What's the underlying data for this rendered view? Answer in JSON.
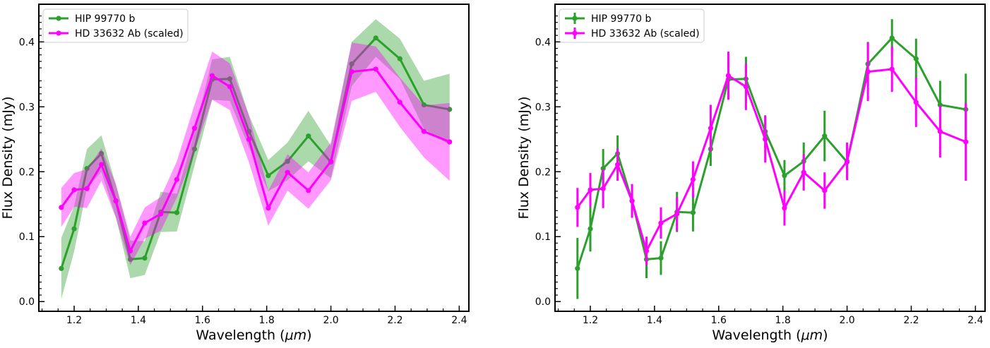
{
  "chart_data": [
    {
      "type": "line",
      "style": "shaded-band",
      "xlabel": "Wavelength (",
      "xlabel_unit": "μm",
      "xlabel_close": ")",
      "ylabel": "Flux Density (mJy)",
      "xlim": [
        1.09,
        2.43
      ],
      "ylim": [
        -0.015,
        0.458
      ],
      "xticks": [
        1.2,
        1.4,
        1.6,
        1.8,
        2.0,
        2.2,
        2.4
      ],
      "xtick_labels": [
        "1.2",
        "1.4",
        "1.6",
        "1.8",
        "2.0",
        "2.2",
        "2.4"
      ],
      "yticks": [
        0.0,
        0.1,
        0.2,
        0.3,
        0.4
      ],
      "ytick_labels": [
        "0.0",
        "0.1",
        "0.2",
        "0.3",
        "0.4"
      ],
      "legend_position": "top-left",
      "grid": false,
      "series": [
        {
          "name": "HIP 99770 b",
          "color": "#2ca02c",
          "x": [
            1.16,
            1.2,
            1.24,
            1.285,
            1.33,
            1.375,
            1.42,
            1.47,
            1.52,
            1.575,
            1.63,
            1.685,
            1.745,
            1.805,
            1.865,
            1.93,
            2.0,
            2.065,
            2.14,
            2.215,
            2.29,
            2.37
          ],
          "y": [
            0.051,
            0.112,
            0.205,
            0.228,
            0.155,
            0.065,
            0.067,
            0.138,
            0.137,
            0.235,
            0.342,
            0.343,
            0.262,
            0.194,
            0.216,
            0.255,
            0.215,
            0.366,
            0.406,
            0.374,
            0.303,
            0.296
          ],
          "err": [
            0.047,
            0.035,
            0.03,
            0.028,
            0.025,
            0.029,
            0.026,
            0.031,
            0.029,
            0.026,
            0.031,
            0.034,
            0.025,
            0.024,
            0.029,
            0.039,
            0.025,
            0.034,
            0.029,
            0.031,
            0.037,
            0.055
          ]
        },
        {
          "name": "HD 33632 Ab (scaled)",
          "color": "#ff00ff",
          "x": [
            1.16,
            1.2,
            1.24,
            1.285,
            1.33,
            1.375,
            1.42,
            1.47,
            1.52,
            1.575,
            1.63,
            1.685,
            1.745,
            1.805,
            1.865,
            1.93,
            2.0,
            2.065,
            2.14,
            2.215,
            2.29,
            2.37
          ],
          "y": [
            0.145,
            0.172,
            0.174,
            0.211,
            0.155,
            0.078,
            0.121,
            0.135,
            0.188,
            0.267,
            0.348,
            0.331,
            0.25,
            0.144,
            0.199,
            0.171,
            0.216,
            0.354,
            0.358,
            0.307,
            0.262,
            0.246
          ],
          "err": [
            0.03,
            0.026,
            0.03,
            0.025,
            0.026,
            0.022,
            0.024,
            0.026,
            0.028,
            0.036,
            0.037,
            0.036,
            0.036,
            0.027,
            0.028,
            0.028,
            0.029,
            0.045,
            0.035,
            0.038,
            0.04,
            0.06
          ]
        }
      ]
    },
    {
      "type": "line",
      "style": "error-bars",
      "xlabel": "Wavelength (",
      "xlabel_unit": "μm",
      "xlabel_close": ")",
      "ylabel": "Flux Density (mJy)",
      "xlim": [
        1.09,
        2.43
      ],
      "ylim": [
        -0.015,
        0.458
      ],
      "xticks": [
        1.2,
        1.4,
        1.6,
        1.8,
        2.0,
        2.2,
        2.4
      ],
      "xtick_labels": [
        "1.2",
        "1.4",
        "1.6",
        "1.8",
        "2.0",
        "2.2",
        "2.4"
      ],
      "yticks": [
        0.0,
        0.1,
        0.2,
        0.3,
        0.4
      ],
      "ytick_labels": [
        "0.0",
        "0.1",
        "0.2",
        "0.3",
        "0.4"
      ],
      "legend_position": "top-left",
      "grid": false,
      "series": [
        {
          "name": "HIP 99770 b",
          "color": "#2ca02c",
          "x": [
            1.16,
            1.2,
            1.24,
            1.285,
            1.33,
            1.375,
            1.42,
            1.47,
            1.52,
            1.575,
            1.63,
            1.685,
            1.745,
            1.805,
            1.865,
            1.93,
            2.0,
            2.065,
            2.14,
            2.215,
            2.29,
            2.37
          ],
          "y": [
            0.051,
            0.112,
            0.205,
            0.228,
            0.155,
            0.065,
            0.067,
            0.138,
            0.137,
            0.235,
            0.342,
            0.343,
            0.262,
            0.194,
            0.216,
            0.255,
            0.215,
            0.366,
            0.406,
            0.374,
            0.303,
            0.296
          ],
          "err": [
            0.047,
            0.035,
            0.03,
            0.028,
            0.025,
            0.029,
            0.026,
            0.031,
            0.029,
            0.026,
            0.031,
            0.034,
            0.025,
            0.024,
            0.029,
            0.039,
            0.025,
            0.034,
            0.029,
            0.031,
            0.037,
            0.055
          ]
        },
        {
          "name": "HD 33632 Ab (scaled)",
          "color": "#ff00ff",
          "x": [
            1.16,
            1.2,
            1.24,
            1.285,
            1.33,
            1.375,
            1.42,
            1.47,
            1.52,
            1.575,
            1.63,
            1.685,
            1.745,
            1.805,
            1.865,
            1.93,
            2.0,
            2.065,
            2.14,
            2.215,
            2.29,
            2.37
          ],
          "y": [
            0.145,
            0.172,
            0.174,
            0.211,
            0.155,
            0.078,
            0.121,
            0.135,
            0.188,
            0.267,
            0.348,
            0.331,
            0.25,
            0.144,
            0.199,
            0.171,
            0.216,
            0.354,
            0.358,
            0.307,
            0.262,
            0.246
          ],
          "err": [
            0.03,
            0.026,
            0.03,
            0.025,
            0.026,
            0.022,
            0.024,
            0.026,
            0.028,
            0.036,
            0.037,
            0.036,
            0.036,
            0.027,
            0.028,
            0.028,
            0.029,
            0.045,
            0.035,
            0.038,
            0.04,
            0.06
          ]
        }
      ]
    }
  ]
}
